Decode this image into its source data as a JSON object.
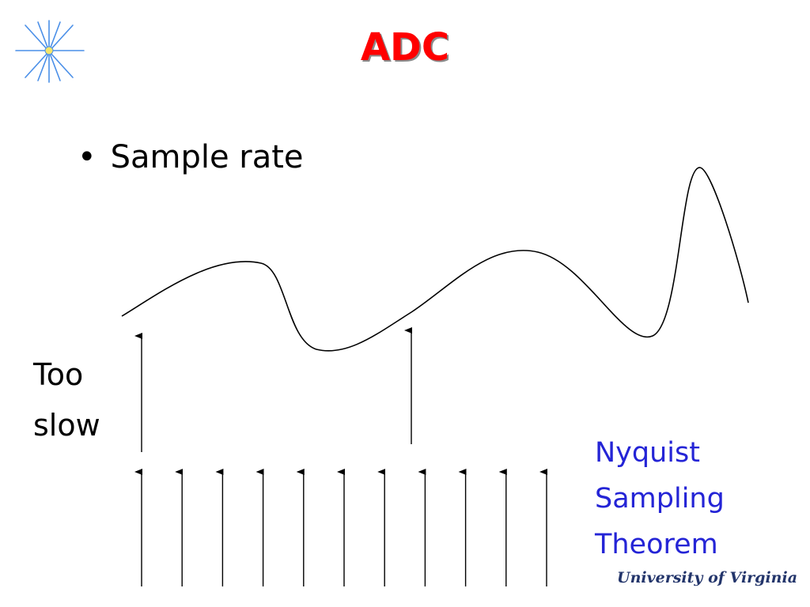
{
  "slide": {
    "title": "ADC",
    "bullet": "Sample rate",
    "slow_label_line1": "Too",
    "slow_label_line2": "slow",
    "nyquist_line1": "Nyquist",
    "nyquist_line2": "Sampling",
    "nyquist_line3": "Theorem",
    "university": "University of Virginia",
    "logo_icon": "star-burst-icon"
  },
  "colors": {
    "title": "#ff0000",
    "nyquist_text": "#2424d6",
    "logo": "#4a8fe8",
    "university": "#23356b"
  },
  "figure": {
    "slow_sample_count": 2,
    "nyquist_sample_count": 11
  }
}
